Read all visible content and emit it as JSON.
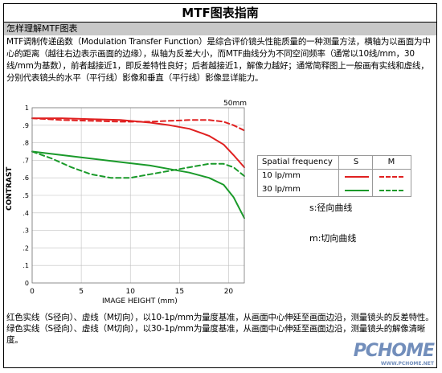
{
  "doc": {
    "title": "MTF图表指南",
    "subheading": "怎样理解MTF图表",
    "intro": "MTF调制传递函数（Modulation Transfer Function）是综合评价镜头性能质量的一种测量方法，横轴为以画面为中心的距离（越往右边表示画面的边缘），纵轴为反差大小，而MTF曲线分为不同空间频率（通常以10线/mm，30线/mm为基数），前者越接近1，即反差特性良好；后者越接近1，解像力越好；通常简释图上一般画有实线和虚线，分别代表镜头的水平（平行线）影像和垂直（平行线）影像显详能力。",
    "red_note": "红色实线（S径向）、虚线（M切向），以10-1p/mm为量度基准，从画面中心伸延至画面边沿，测量镜头的反差特性。",
    "green_note": "绿色实线（S径向）、虚线（M切向），以30-1p/mm为量度基准，从画面中心伸延至画面边沿，测量镜头的解像清晰度。",
    "s_note": "s:径向曲线",
    "m_note": "m:切向曲线",
    "watermark": "PCHOME",
    "watermark_url": "WWW.PCHOME.NET"
  },
  "chart_data": {
    "type": "line",
    "corner_label": "50mm",
    "xlabel": "IMAGE HEIGHT (mm)",
    "ylabel": "CONTRAST",
    "xlim": [
      0,
      21.6
    ],
    "ylim": [
      0,
      1
    ],
    "xticks": [
      0,
      5,
      10,
      15,
      20
    ],
    "yticks": [
      0,
      0.1,
      0.2,
      0.3,
      0.4,
      0.5,
      0.6,
      0.7,
      0.8,
      0.9,
      1
    ],
    "xtick_labels": [
      "0",
      "5",
      "10",
      "15",
      "20"
    ],
    "ytick_labels": [
      "0",
      ".1",
      ".2",
      ".3",
      ".4",
      ".5",
      ".6",
      ".7",
      ".8",
      ".9",
      "1"
    ],
    "grid": true,
    "legend": {
      "header": [
        "Spatial frequency",
        "S",
        "M"
      ],
      "rows": [
        "10 lp/mm",
        "30 lp/mm"
      ]
    },
    "colors": {
      "red": "#e02020",
      "green": "#1a9a2a"
    },
    "series": [
      {
        "freq": "10 lp/mm",
        "type": "S",
        "color": "red",
        "dash": false,
        "x": [
          0,
          3,
          6,
          9,
          12,
          14,
          16,
          18,
          19.5,
          20.5,
          21.6
        ],
        "y": [
          0.94,
          0.94,
          0.935,
          0.93,
          0.915,
          0.9,
          0.88,
          0.84,
          0.79,
          0.73,
          0.66
        ]
      },
      {
        "freq": "10 lp/mm",
        "type": "M",
        "color": "red",
        "dash": true,
        "x": [
          0,
          3,
          6,
          9,
          12,
          14,
          16,
          18,
          19.5,
          20.5,
          21.6
        ],
        "y": [
          0.94,
          0.93,
          0.925,
          0.92,
          0.92,
          0.925,
          0.93,
          0.93,
          0.92,
          0.9,
          0.87
        ]
      },
      {
        "freq": "30 lp/mm",
        "type": "S",
        "color": "green",
        "dash": false,
        "x": [
          0,
          3,
          6,
          9,
          12,
          14,
          16,
          18,
          19.5,
          20.5,
          21.6
        ],
        "y": [
          0.75,
          0.73,
          0.71,
          0.69,
          0.67,
          0.65,
          0.63,
          0.6,
          0.56,
          0.49,
          0.37
        ]
      },
      {
        "freq": "30 lp/mm",
        "type": "M",
        "color": "green",
        "dash": true,
        "x": [
          0,
          2,
          4,
          6,
          8,
          10,
          12,
          14,
          16,
          18,
          19.5,
          20.5,
          21.6
        ],
        "y": [
          0.75,
          0.71,
          0.66,
          0.62,
          0.6,
          0.6,
          0.62,
          0.64,
          0.66,
          0.68,
          0.68,
          0.66,
          0.61
        ]
      }
    ]
  }
}
